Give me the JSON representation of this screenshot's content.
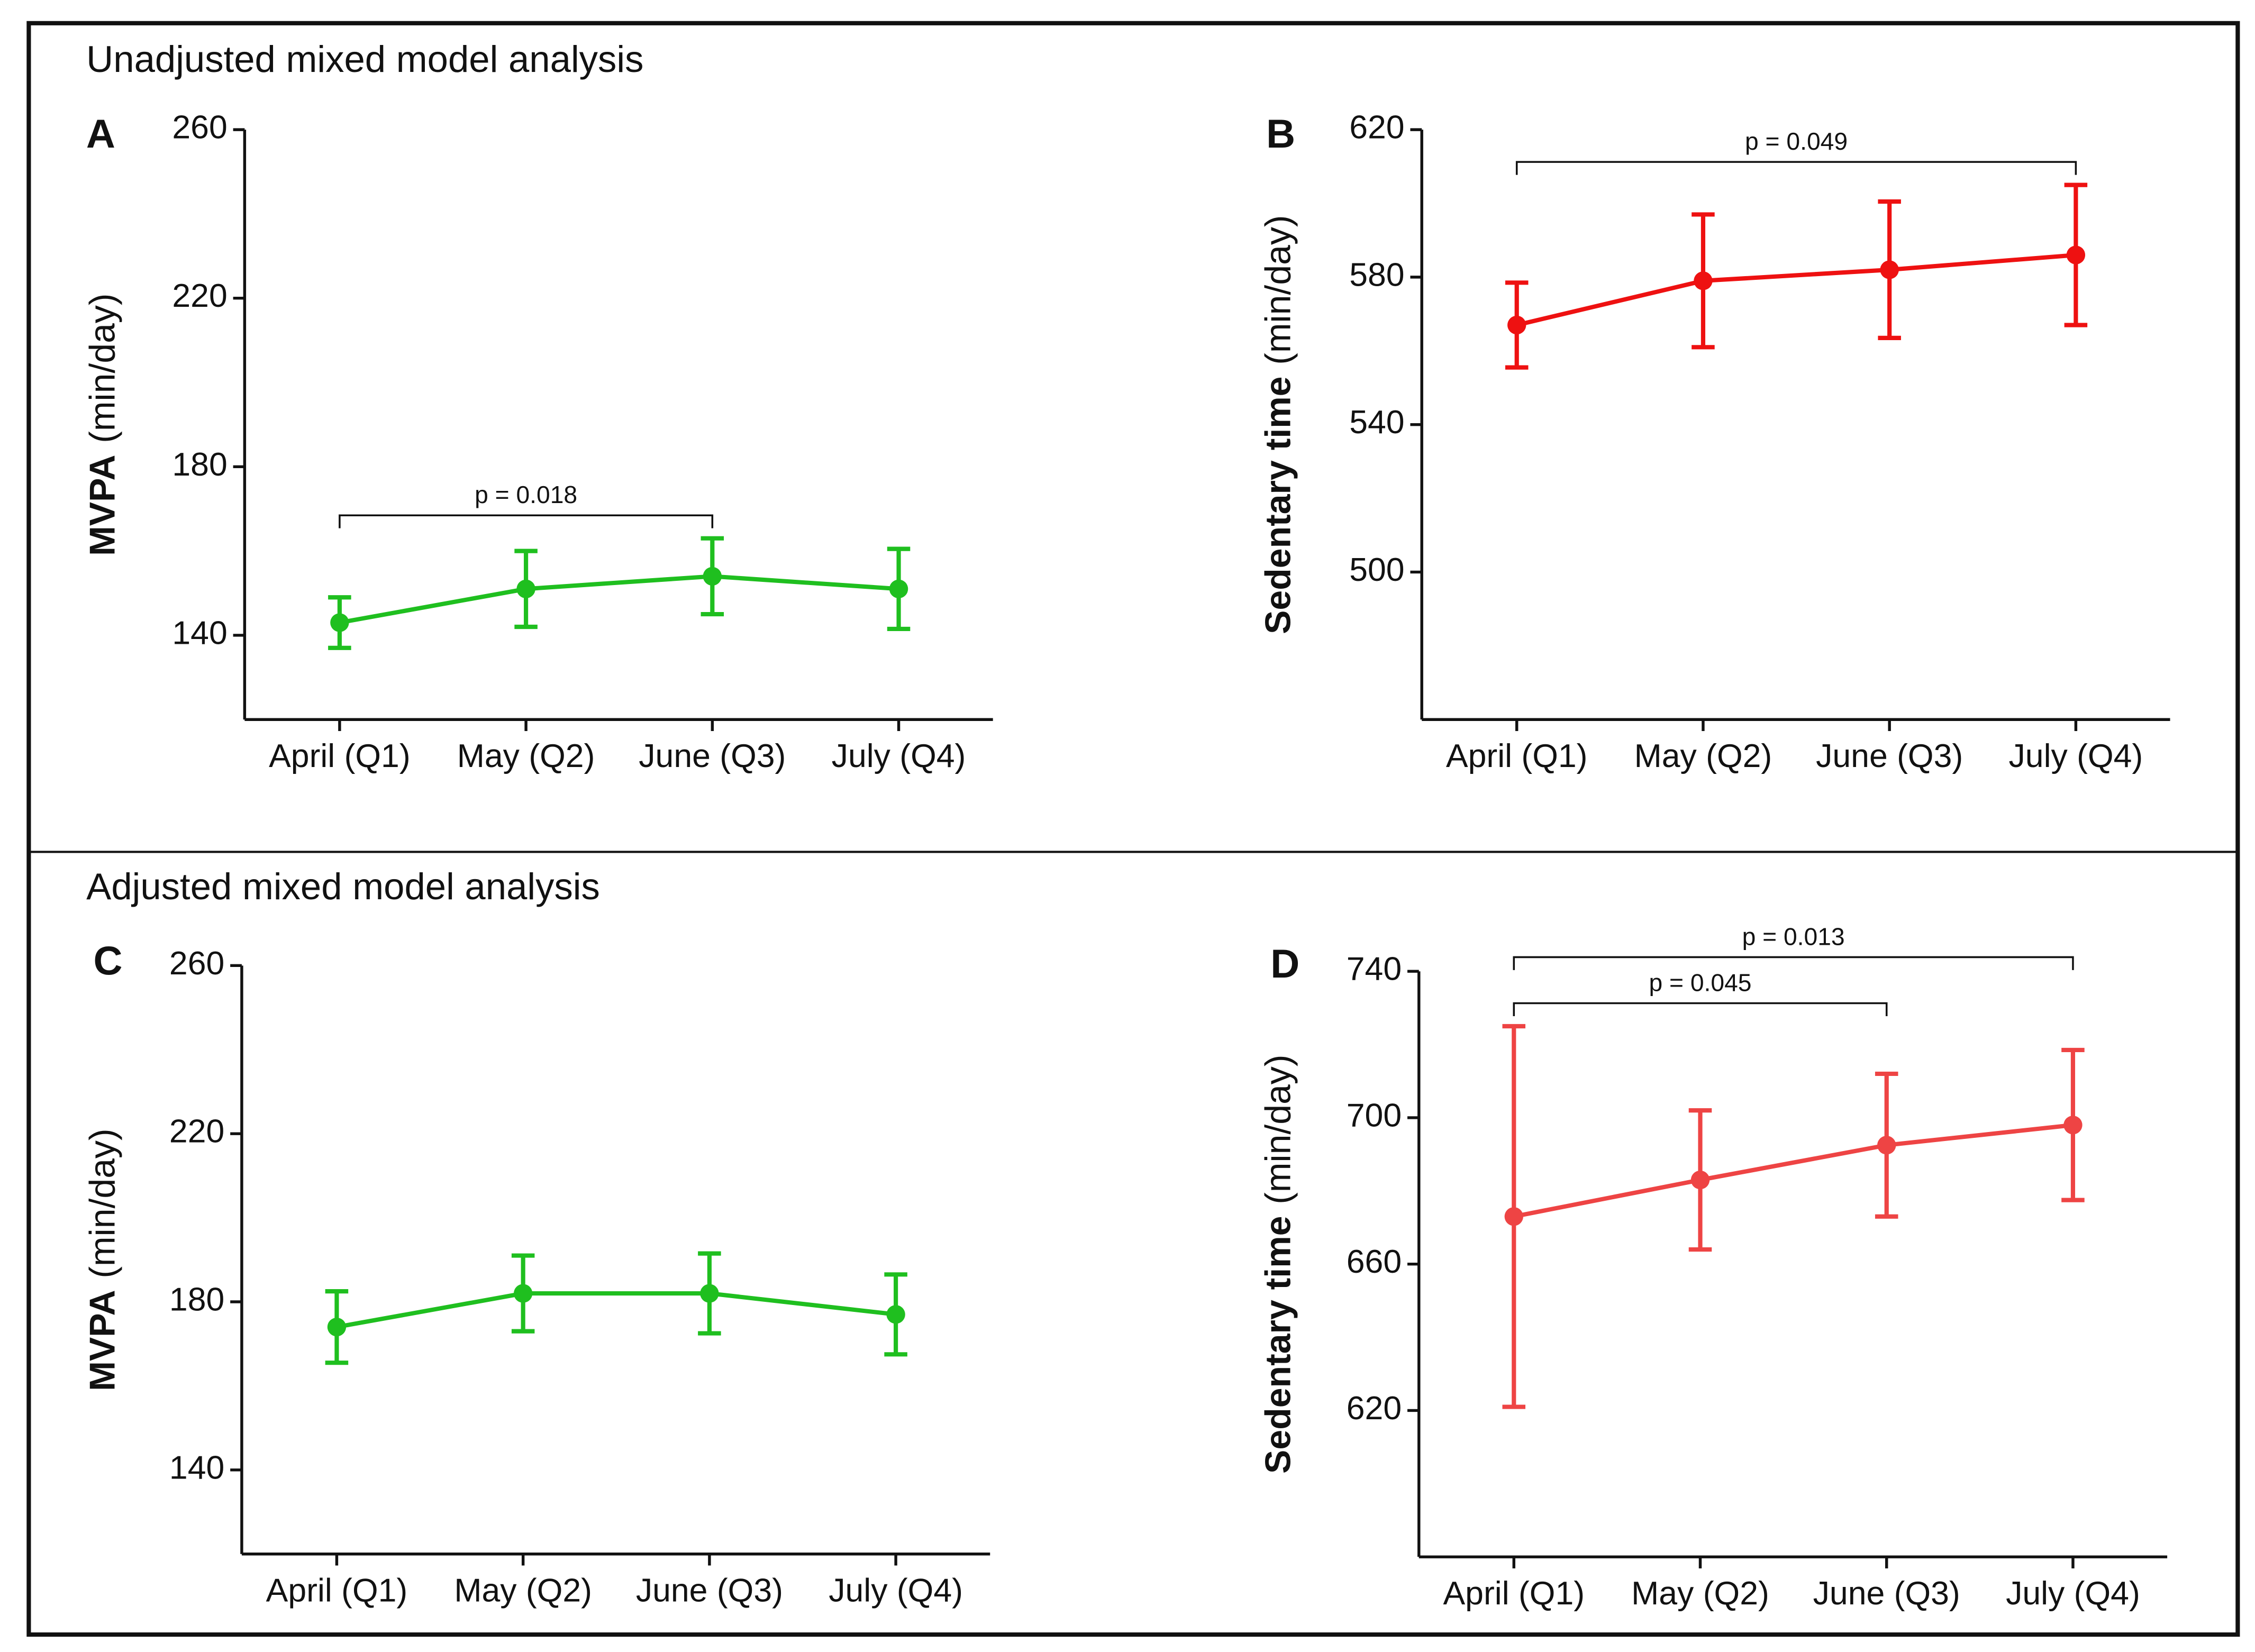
{
  "sections": [
    "Unadjusted mixed model analysis",
    "Adjusted mixed model analysis"
  ],
  "chart_data": [
    {
      "type": "line",
      "panel": "A",
      "ylabel": "MVPA",
      "ylabel_unit": "(min/day)",
      "categories": [
        "April (Q1)",
        "May (Q2)",
        "June (Q3)",
        "July (Q4)"
      ],
      "series": [
        {
          "color": "#1fbf1f",
          "values": [
            143,
            151,
            154,
            151
          ],
          "errors": [
            6,
            9,
            9,
            9.5
          ]
        }
      ],
      "ylim": [
        120,
        260
      ],
      "yticks": [
        140,
        180,
        220,
        260
      ],
      "brackets": [
        {
          "between": [
            0,
            2
          ],
          "label": "p = 0.018"
        }
      ]
    },
    {
      "type": "line",
      "panel": "B",
      "ylabel": "Sedentary time",
      "ylabel_unit": "(min/day)",
      "categories": [
        "April (Q1)",
        "May (Q2)",
        "June (Q3)",
        "July (Q4)"
      ],
      "series": [
        {
          "color": "#ee1111",
          "values": [
            567,
            579,
            582,
            586
          ],
          "errors": [
            11.5,
            18,
            18.5,
            19
          ]
        }
      ],
      "ylim": [
        460,
        620
      ],
      "yticks": [
        500,
        540,
        580,
        620
      ],
      "brackets": [
        {
          "between": [
            0,
            3
          ],
          "label": "p = 0.049"
        }
      ]
    },
    {
      "type": "line",
      "panel": "C",
      "ylabel": "MVPA",
      "ylabel_unit": "(min/day)",
      "categories": [
        "April (Q1)",
        "May (Q2)",
        "June (Q3)",
        "July (Q4)"
      ],
      "series": [
        {
          "color": "#1fbf1f",
          "values": [
            174,
            182,
            182,
            177
          ],
          "errors": [
            8.5,
            9,
            9.5,
            9.5
          ]
        }
      ],
      "ylim": [
        120,
        260
      ],
      "yticks": [
        140,
        180,
        220,
        260
      ],
      "brackets": []
    },
    {
      "type": "line",
      "panel": "D",
      "ylabel": "Sedentary time",
      "ylabel_unit": "(min/day)",
      "categories": [
        "April (Q1)",
        "May (Q2)",
        "June (Q3)",
        "July (Q4)"
      ],
      "series": [
        {
          "color": "#ee4444",
          "values": [
            673,
            683,
            692.5,
            698
          ],
          "errors": [
            52,
            19,
            19.5,
            20.5
          ]
        }
      ],
      "ylim": [
        580,
        740
      ],
      "yticks": [
        620,
        660,
        700,
        740
      ],
      "brackets": [
        {
          "between": [
            0,
            2
          ],
          "label": "p = 0.045"
        },
        {
          "between": [
            0,
            3
          ],
          "label": "p = 0.013"
        }
      ]
    }
  ]
}
